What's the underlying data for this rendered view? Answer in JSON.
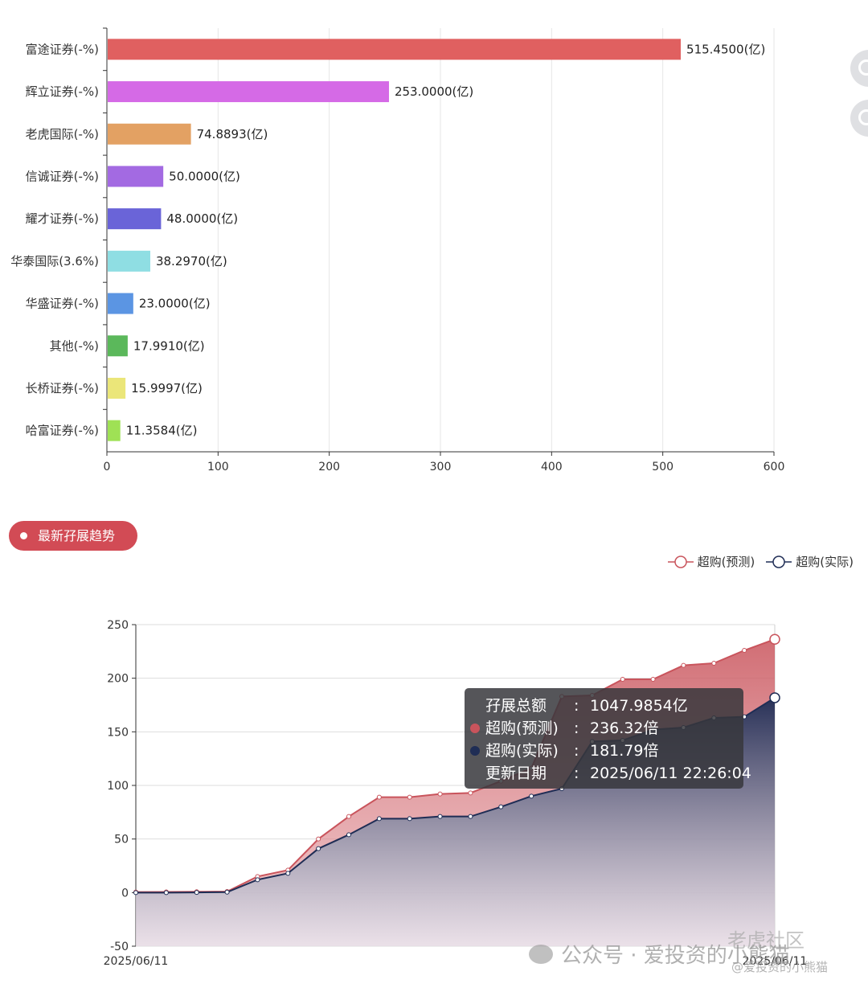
{
  "chart_data": [
    {
      "type": "bar",
      "orientation": "horizontal",
      "categories": [
        "富途证券(-%)",
        "辉立证券(-%)",
        "老虎国际(-%)",
        "信诚证券(-%)",
        "耀才证券(-%)",
        "华泰国际(3.6%)",
        "华盛证券(-%)",
        "其他(-%)",
        "长桥证券(-%)",
        "哈富证券(-%)"
      ],
      "values": [
        515.45,
        253.0,
        74.8893,
        50.0,
        48.0,
        38.297,
        23.0,
        17.991,
        15.9997,
        11.3584
      ],
      "data_labels": [
        "515.4500(亿)",
        "253.0000(亿)",
        "74.8893(亿)",
        "50.0000(亿)",
        "48.0000(亿)",
        "38.2970(亿)",
        "23.0000(亿)",
        "17.9910(亿)",
        "15.9997(亿)",
        "11.3584(亿)"
      ],
      "colors": [
        "#e06060",
        "#d56ae6",
        "#e3a163",
        "#a36ae2",
        "#6a64d8",
        "#8fdee3",
        "#5b95e3",
        "#5bb85b",
        "#ebe679",
        "#9fe155"
      ],
      "xlim": [
        0,
        600
      ],
      "x_ticks": [
        "0",
        "100",
        "200",
        "300",
        "400",
        "500",
        "600"
      ],
      "grid": true
    },
    {
      "type": "area",
      "x_start_label": "2025/06/11",
      "x_end_label": "2025/06/11",
      "ylim": [
        -50,
        250
      ],
      "y_ticks": [
        "250",
        "200",
        "150",
        "100",
        "50",
        "0",
        "-50"
      ],
      "legend_position": "top-right",
      "series": [
        {
          "name": "超购(预测)",
          "color": "#c9545c",
          "values": [
            0.5,
            0.6,
            0.8,
            1.0,
            15,
            21,
            50,
            71,
            89,
            89,
            92,
            93,
            104,
            116,
            183,
            184,
            199,
            199,
            212,
            214,
            226,
            236.32
          ]
        },
        {
          "name": "超购(实际)",
          "color": "#1f2d55",
          "values": [
            0,
            0,
            0.2,
            0.4,
            12,
            18,
            41,
            54,
            69,
            69,
            71,
            71,
            80,
            90,
            97,
            141,
            142,
            152,
            154,
            163,
            164,
            181.79
          ]
        }
      ],
      "tooltip": {
        "rows": [
          {
            "label": "孖展总额",
            "value": "1047.9854亿"
          },
          {
            "label": "超购(预测)",
            "value": "236.32倍"
          },
          {
            "label": "超购(实际)",
            "value": "181.79倍"
          },
          {
            "label": "更新日期",
            "value": "2025/06/11 22:26:04"
          }
        ],
        "separator": ":"
      }
    }
  ],
  "section": {
    "title": "最新孖展趋势"
  },
  "watermark": {
    "wechat": "公众号 · 爱投资的小熊猫",
    "tiger": "老虎社区",
    "handle": "@爱投资的小熊猫"
  }
}
